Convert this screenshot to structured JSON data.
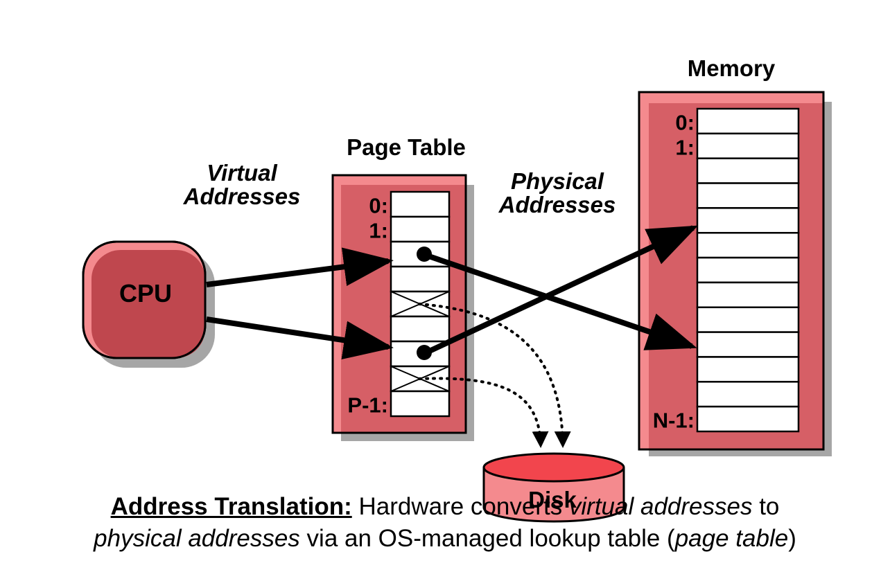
{
  "labels": {
    "memory": "Memory",
    "page_table": "Page Table",
    "virtual_addresses_1": "Virtual",
    "virtual_addresses_2": "Addresses",
    "physical_addresses_1": "Physical",
    "physical_addresses_2": "Addresses",
    "cpu": "CPU",
    "disk": "Disk"
  },
  "page_table": {
    "row_labels": [
      "0:",
      "1:",
      "P-1:"
    ],
    "rows": 9
  },
  "memory": {
    "row_labels": [
      "0:",
      "1:",
      "N-1:"
    ],
    "rows": 13
  },
  "caption": {
    "heading": "Address Translation:",
    "t1": " Hardware converts ",
    "i1": "virtual addresses",
    "t2": " to",
    "i2": "physical addresses",
    "t3": " via an OS-managed lookup table (",
    "i3": "page table",
    "t4": ")"
  },
  "colors": {
    "container_fill": "#d65f66",
    "container_light": "#f48a8e",
    "cpu_fill": "#bf474e",
    "shadow": "#a6a6a6",
    "disk_top": "#f2454d",
    "disk_body": "#f48a8e"
  }
}
